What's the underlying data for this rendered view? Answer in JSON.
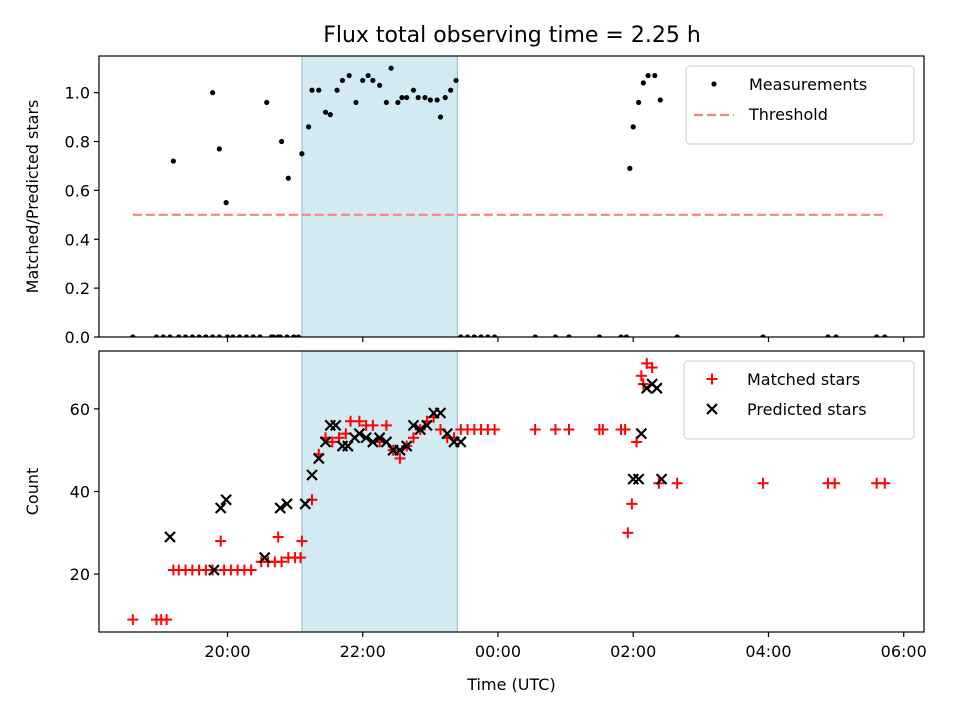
{
  "figure": {
    "title": "Flux total observing time = 2.25 h"
  },
  "chart_data": [
    {
      "panel": "top",
      "type": "scatter",
      "xlabel": "",
      "ylabel": "Matched/Predicted stars",
      "x_unit": "hours relative to 00:00 UTC",
      "xlim": [
        -5.9,
        6.3
      ],
      "ylim": [
        0.0,
        1.15
      ],
      "yticks": [
        0.0,
        0.2,
        0.4,
        0.6,
        0.8,
        1.0
      ],
      "ytick_labels": [
        "0.0",
        "0.2",
        "0.4",
        "0.6",
        "0.8",
        "1.0"
      ],
      "grid": false,
      "legend": {
        "position": "top-right",
        "entries": [
          "Measurements",
          "Threshold"
        ]
      },
      "highlight_span": {
        "x0": -2.9,
        "x1": -0.6,
        "color": "#add8e6"
      },
      "series": [
        {
          "name": "Measurements",
          "kind": "scatter",
          "color": "#000000",
          "points": [
            [
              -5.4,
              0
            ],
            [
              -5.05,
              0
            ],
            [
              -4.95,
              0
            ],
            [
              -4.85,
              0
            ],
            [
              -4.8,
              0.72
            ],
            [
              -4.72,
              0
            ],
            [
              -4.62,
              0
            ],
            [
              -4.52,
              0
            ],
            [
              -4.42,
              0
            ],
            [
              -4.32,
              0
            ],
            [
              -4.22,
              0
            ],
            [
              -4.12,
              0
            ],
            [
              -4.0,
              0
            ],
            [
              -4.22,
              1.0
            ],
            [
              -4.12,
              0.77
            ],
            [
              -4.02,
              0.55
            ],
            [
              -3.92,
              0
            ],
            [
              -3.82,
              0
            ],
            [
              -3.72,
              0
            ],
            [
              -3.62,
              0
            ],
            [
              -3.52,
              0
            ],
            [
              -3.42,
              0.96
            ],
            [
              -3.32,
              0
            ],
            [
              -3.22,
              0
            ],
            [
              -3.12,
              0
            ],
            [
              -3.02,
              0
            ],
            [
              -3.35,
              0
            ],
            [
              -3.25,
              0
            ],
            [
              -3.2,
              0.8
            ],
            [
              -3.1,
              0.65
            ],
            [
              -2.95,
              0
            ],
            [
              -2.9,
              0.75
            ],
            [
              -2.8,
              0.86
            ],
            [
              -2.75,
              1.01
            ],
            [
              -2.65,
              1.01
            ],
            [
              -2.55,
              0.92
            ],
            [
              -2.48,
              0.91
            ],
            [
              -2.38,
              1.01
            ],
            [
              -2.3,
              1.05
            ],
            [
              -2.2,
              1.07
            ],
            [
              -2.1,
              0.96
            ],
            [
              -2.0,
              1.05
            ],
            [
              -1.92,
              1.07
            ],
            [
              -1.85,
              1.05
            ],
            [
              -1.75,
              1.03
            ],
            [
              -1.65,
              0.96
            ],
            [
              -1.58,
              1.1
            ],
            [
              -1.48,
              0.96
            ],
            [
              -1.42,
              0.98
            ],
            [
              -1.35,
              0.98
            ],
            [
              -1.25,
              1.01
            ],
            [
              -1.18,
              0.98
            ],
            [
              -1.08,
              0.98
            ],
            [
              -1.0,
              0.97
            ],
            [
              -0.9,
              0.97
            ],
            [
              -0.85,
              0.9
            ],
            [
              -0.78,
              0.98
            ],
            [
              -0.7,
              1.01
            ],
            [
              -0.62,
              1.05
            ],
            [
              -0.55,
              0
            ],
            [
              -0.45,
              0
            ],
            [
              -0.35,
              0
            ],
            [
              -0.25,
              0
            ],
            [
              -0.15,
              0
            ],
            [
              -0.05,
              0
            ],
            [
              0.55,
              0
            ],
            [
              0.85,
              0
            ],
            [
              1.05,
              0
            ],
            [
              1.5,
              0
            ],
            [
              1.82,
              0
            ],
            [
              1.9,
              0
            ],
            [
              1.95,
              0.69
            ],
            [
              2.0,
              0.86
            ],
            [
              2.08,
              0.96
            ],
            [
              2.15,
              1.04
            ],
            [
              2.22,
              1.07
            ],
            [
              2.32,
              1.07
            ],
            [
              2.4,
              0.97
            ],
            [
              2.65,
              0
            ],
            [
              3.92,
              0
            ],
            [
              4.88,
              0
            ],
            [
              5.0,
              0
            ],
            [
              5.6,
              0
            ],
            [
              5.72,
              0
            ]
          ]
        },
        {
          "name": "Threshold",
          "kind": "line",
          "color": "#ff7f7f",
          "dashed": true,
          "x": [
            -5.4,
            5.75
          ],
          "y": [
            0.5,
            0.5
          ]
        }
      ]
    },
    {
      "panel": "bottom",
      "type": "scatter",
      "xlabel": "Time (UTC)",
      "ylabel": "Count",
      "x_unit": "hours relative to 00:00 UTC",
      "xlim": [
        -5.9,
        6.3
      ],
      "ylim": [
        6,
        74
      ],
      "xticks": [
        -4,
        -2,
        0,
        2,
        4,
        6
      ],
      "xtick_labels": [
        "20:00",
        "22:00",
        "00:00",
        "02:00",
        "04:00",
        "06:00"
      ],
      "yticks": [
        20,
        40,
        60
      ],
      "ytick_labels": [
        "20",
        "40",
        "60"
      ],
      "grid": false,
      "legend": {
        "position": "top-right",
        "entries": [
          "Matched stars",
          "Predicted stars"
        ]
      },
      "highlight_span": {
        "x0": -2.9,
        "x1": -0.6,
        "color": "#add8e6"
      },
      "series": [
        {
          "name": "Matched stars",
          "marker": "plus",
          "color": "#ff0000",
          "points": [
            [
              -5.4,
              9
            ],
            [
              -5.05,
              9
            ],
            [
              -4.98,
              9
            ],
            [
              -4.9,
              9
            ],
            [
              -4.8,
              21
            ],
            [
              -4.72,
              21
            ],
            [
              -4.62,
              21
            ],
            [
              -4.52,
              21
            ],
            [
              -4.42,
              21
            ],
            [
              -4.32,
              21
            ],
            [
              -4.22,
              21
            ],
            [
              -4.1,
              28
            ],
            [
              -4.05,
              21
            ],
            [
              -3.95,
              21
            ],
            [
              -3.85,
              21
            ],
            [
              -3.75,
              21
            ],
            [
              -3.65,
              21
            ],
            [
              -3.5,
              23
            ],
            [
              -3.4,
              23
            ],
            [
              -3.3,
              23
            ],
            [
              -3.2,
              23
            ],
            [
              -3.25,
              29
            ],
            [
              -3.1,
              24
            ],
            [
              -3.0,
              24
            ],
            [
              -2.92,
              24
            ],
            [
              -2.9,
              28
            ],
            [
              -2.75,
              38
            ],
            [
              -2.65,
              49
            ],
            [
              -2.55,
              53
            ],
            [
              -2.45,
              52
            ],
            [
              -2.35,
              53
            ],
            [
              -2.25,
              54
            ],
            [
              -2.18,
              57
            ],
            [
              -2.05,
              57
            ],
            [
              -1.95,
              56
            ],
            [
              -1.85,
              56
            ],
            [
              -1.75,
              52
            ],
            [
              -1.65,
              56
            ],
            [
              -1.55,
              50
            ],
            [
              -1.45,
              48
            ],
            [
              -1.35,
              51
            ],
            [
              -1.25,
              53
            ],
            [
              -1.15,
              55
            ],
            [
              -1.05,
              57
            ],
            [
              -0.95,
              58
            ],
            [
              -0.85,
              55
            ],
            [
              -0.75,
              53
            ],
            [
              -0.65,
              53
            ],
            [
              -0.55,
              55
            ],
            [
              -0.45,
              55
            ],
            [
              -0.35,
              55
            ],
            [
              -0.25,
              55
            ],
            [
              -0.15,
              55
            ],
            [
              -0.05,
              55
            ],
            [
              0.55,
              55
            ],
            [
              0.85,
              55
            ],
            [
              1.05,
              55
            ],
            [
              1.5,
              55
            ],
            [
              1.55,
              55
            ],
            [
              1.82,
              55
            ],
            [
              1.88,
              55
            ],
            [
              1.92,
              30
            ],
            [
              1.98,
              37
            ],
            [
              2.05,
              52
            ],
            [
              2.12,
              68
            ],
            [
              2.15,
              66
            ],
            [
              2.2,
              71
            ],
            [
              2.28,
              70
            ],
            [
              2.38,
              42
            ],
            [
              2.65,
              42
            ],
            [
              3.92,
              42
            ],
            [
              4.88,
              42
            ],
            [
              4.98,
              42
            ],
            [
              5.6,
              42
            ],
            [
              5.72,
              42
            ]
          ]
        },
        {
          "name": "Predicted stars",
          "marker": "x",
          "color": "#000000",
          "points": [
            [
              -4.85,
              29
            ],
            [
              -4.2,
              21
            ],
            [
              -4.1,
              36
            ],
            [
              -4.02,
              38
            ],
            [
              -3.45,
              24
            ],
            [
              -3.22,
              36
            ],
            [
              -3.12,
              37
            ],
            [
              -2.85,
              37
            ],
            [
              -2.75,
              44
            ],
            [
              -2.65,
              48
            ],
            [
              -2.55,
              52
            ],
            [
              -2.48,
              56
            ],
            [
              -2.4,
              56
            ],
            [
              -2.3,
              51
            ],
            [
              -2.22,
              51
            ],
            [
              -2.12,
              53
            ],
            [
              -2.05,
              54
            ],
            [
              -1.95,
              53
            ],
            [
              -1.85,
              52
            ],
            [
              -1.75,
              53
            ],
            [
              -1.65,
              52
            ],
            [
              -1.55,
              50
            ],
            [
              -1.45,
              50
            ],
            [
              -1.35,
              51
            ],
            [
              -1.25,
              56
            ],
            [
              -1.15,
              55
            ],
            [
              -1.05,
              56
            ],
            [
              -0.95,
              59
            ],
            [
              -0.85,
              59
            ],
            [
              -0.75,
              54
            ],
            [
              -0.65,
              52
            ],
            [
              -0.55,
              52
            ],
            [
              2.0,
              43
            ],
            [
              2.08,
              43
            ],
            [
              2.12,
              54
            ],
            [
              2.2,
              65
            ],
            [
              2.28,
              66
            ],
            [
              2.35,
              65
            ],
            [
              2.42,
              43
            ]
          ]
        }
      ]
    }
  ]
}
